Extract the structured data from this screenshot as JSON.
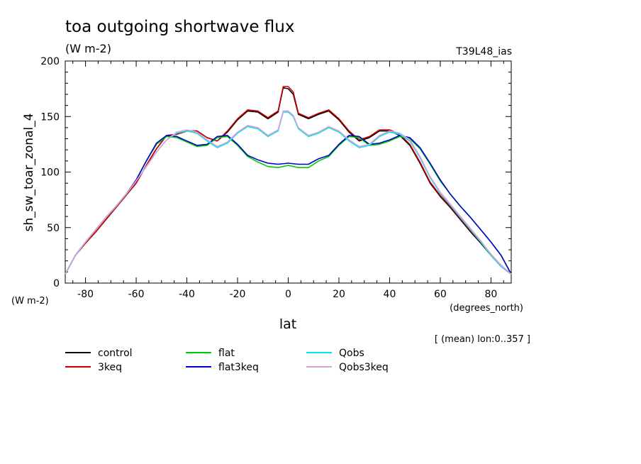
{
  "chart_data": {
    "type": "line",
    "title": "toa outgoing shortwave flux",
    "units": "(W m-2)",
    "run_label": "T39L48_ias",
    "ylabel": "sh_sw_toar_zonal_4",
    "ylabel_units": "(W m-2)",
    "xlabel": "lat",
    "xlabel_units": "(degrees_north)",
    "note": "[ (mean) lon:0..357 ]",
    "xlim": [
      -88,
      88
    ],
    "ylim": [
      0,
      200
    ],
    "x_ticks": [
      -80,
      -60,
      -40,
      -20,
      0,
      20,
      40,
      60,
      80
    ],
    "y_ticks": [
      0,
      50,
      100,
      150,
      200
    ],
    "legend_position": "bottom",
    "series": [
      {
        "name": "control",
        "color": "#000000",
        "x": [
          -88,
          -84,
          -80,
          -76,
          -72,
          -68,
          -64,
          -60,
          -56,
          -52,
          -48,
          -44,
          -40,
          -36,
          -32,
          -28,
          -24,
          -20,
          -16,
          -12,
          -8,
          -4,
          -2,
          0,
          2,
          4,
          8,
          12,
          16,
          20,
          24,
          28,
          32,
          36,
          40,
          44,
          48,
          52,
          56,
          60,
          64,
          68,
          72,
          76,
          80,
          84,
          88
        ],
        "y": [
          8,
          25,
          36,
          46,
          57,
          68,
          79,
          90,
          106,
          121,
          133,
          134,
          137,
          137,
          131,
          128,
          136,
          147,
          155,
          154,
          148,
          154,
          176,
          175,
          170,
          152,
          148,
          152,
          155,
          147,
          136,
          128,
          131,
          137,
          137,
          133,
          124,
          108,
          90,
          78,
          68,
          57,
          46,
          36,
          25,
          15,
          8
        ]
      },
      {
        "name": "3keq",
        "color": "#cc0000",
        "x": [
          -88,
          -84,
          -80,
          -76,
          -72,
          -68,
          -64,
          -60,
          -56,
          -52,
          -48,
          -44,
          -40,
          -36,
          -32,
          -28,
          -24,
          -20,
          -16,
          -12,
          -8,
          -4,
          -2,
          0,
          2,
          4,
          8,
          12,
          16,
          20,
          24,
          28,
          32,
          36,
          40,
          44,
          48,
          52,
          56,
          60,
          64,
          68,
          72,
          76,
          80,
          84,
          88
        ],
        "y": [
          8,
          25,
          36,
          46,
          57,
          68,
          79,
          90,
          106,
          121,
          133,
          134,
          137,
          137,
          131,
          128,
          137,
          148,
          156,
          155,
          149,
          155,
          177,
          177,
          172,
          153,
          149,
          153,
          156,
          148,
          137,
          129,
          132,
          138,
          138,
          134,
          125,
          109,
          91,
          79,
          69,
          58,
          47,
          37,
          26,
          16,
          8
        ]
      },
      {
        "name": "flat",
        "color": "#00cc00",
        "x": [
          -88,
          -84,
          -80,
          -76,
          -72,
          -68,
          -64,
          -60,
          -56,
          -52,
          -48,
          -44,
          -40,
          -36,
          -32,
          -28,
          -24,
          -20,
          -16,
          -12,
          -8,
          -4,
          0,
          4,
          8,
          12,
          16,
          20,
          24,
          28,
          32,
          36,
          40,
          44,
          48,
          52,
          56,
          60,
          64,
          68,
          72,
          76,
          80,
          84,
          88
        ],
        "y": [
          8,
          25,
          37,
          48,
          59,
          69,
          80,
          93,
          110,
          125,
          132,
          131,
          127,
          123,
          124,
          131,
          132,
          124,
          114,
          109,
          105,
          104,
          106,
          104,
          104,
          110,
          114,
          124,
          132,
          131,
          124,
          125,
          128,
          132,
          130,
          121,
          107,
          92,
          80,
          69,
          59,
          48,
          37,
          25,
          8
        ]
      },
      {
        "name": "flat3keq",
        "color": "#0000cc",
        "x": [
          -88,
          -84,
          -80,
          -76,
          -72,
          -68,
          -64,
          -60,
          -56,
          -52,
          -48,
          -44,
          -40,
          -36,
          -32,
          -28,
          -24,
          -20,
          -16,
          -12,
          -8,
          -4,
          0,
          4,
          8,
          12,
          16,
          20,
          24,
          28,
          32,
          36,
          40,
          44,
          48,
          52,
          56,
          60,
          64,
          68,
          72,
          76,
          80,
          84,
          88
        ],
        "y": [
          8,
          25,
          37,
          48,
          59,
          69,
          80,
          93,
          110,
          126,
          133,
          132,
          128,
          124,
          125,
          132,
          133,
          125,
          115,
          111,
          108,
          107,
          108,
          107,
          107,
          112,
          115,
          125,
          133,
          132,
          125,
          126,
          129,
          133,
          131,
          122,
          108,
          93,
          80,
          69,
          59,
          48,
          37,
          25,
          8
        ]
      },
      {
        "name": "Qobs",
        "color": "#00e5e5",
        "x": [
          -88,
          -84,
          -80,
          -76,
          -72,
          -68,
          -64,
          -60,
          -56,
          -52,
          -48,
          -44,
          -40,
          -36,
          -32,
          -28,
          -24,
          -20,
          -16,
          -12,
          -8,
          -4,
          -2,
          0,
          2,
          4,
          8,
          12,
          16,
          20,
          24,
          28,
          32,
          36,
          40,
          44,
          48,
          52,
          56,
          60,
          64,
          68,
          72,
          76,
          80,
          84,
          88
        ],
        "y": [
          8,
          25,
          37,
          48,
          59,
          69,
          80,
          92,
          105,
          118,
          129,
          135,
          137,
          135,
          128,
          122,
          126,
          135,
          141,
          139,
          132,
          137,
          154,
          154,
          150,
          139,
          132,
          135,
          140,
          136,
          128,
          122,
          124,
          132,
          136,
          134,
          128,
          113,
          95,
          81,
          70,
          59,
          48,
          37,
          25,
          15,
          8
        ]
      },
      {
        "name": "Qobs3keq",
        "color": "#dda0dd",
        "x": [
          -88,
          -84,
          -80,
          -76,
          -72,
          -68,
          -64,
          -60,
          -56,
          -52,
          -48,
          -44,
          -40,
          -36,
          -32,
          -28,
          -24,
          -20,
          -16,
          -12,
          -8,
          -4,
          -2,
          0,
          2,
          4,
          8,
          12,
          16,
          20,
          24,
          28,
          32,
          36,
          40,
          44,
          48,
          52,
          56,
          60,
          64,
          68,
          72,
          76,
          80,
          84,
          88
        ],
        "y": [
          8,
          25,
          37,
          48,
          59,
          69,
          80,
          92,
          105,
          118,
          129,
          136,
          138,
          136,
          129,
          123,
          127,
          136,
          142,
          140,
          133,
          138,
          155,
          155,
          151,
          140,
          133,
          136,
          141,
          137,
          129,
          123,
          125,
          133,
          137,
          135,
          129,
          114,
          96,
          82,
          71,
          60,
          49,
          38,
          26,
          16,
          8
        ]
      }
    ]
  }
}
